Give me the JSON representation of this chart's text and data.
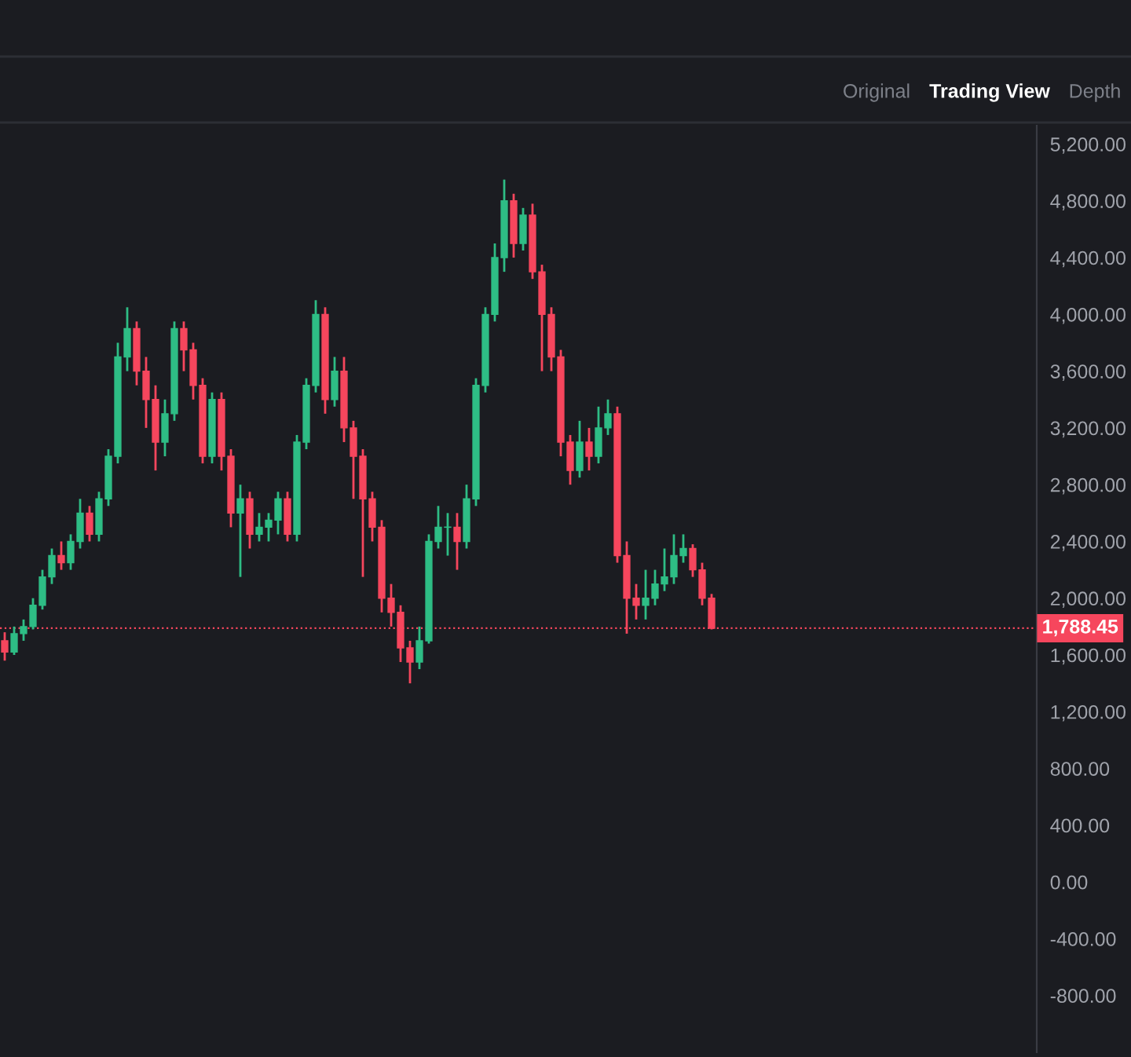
{
  "chart_data": {
    "type": "candlestick",
    "categories": [
      null,
      null,
      null,
      null,
      null,
      null,
      null,
      null,
      null,
      null,
      null,
      null,
      null,
      null,
      null,
      null,
      null,
      null,
      null,
      null,
      null,
      null,
      null,
      null,
      null,
      null,
      null,
      null,
      null,
      null,
      null,
      null,
      null,
      null,
      null,
      null,
      null,
      null,
      null,
      null,
      null,
      null,
      null,
      null,
      null,
      null,
      null,
      null,
      null,
      null,
      null,
      null,
      null,
      null,
      null,
      null,
      null,
      null,
      null,
      null,
      null,
      null,
      null,
      null,
      null,
      null,
      null,
      null,
      null,
      null,
      null,
      null,
      null,
      null,
      null,
      null,
      null,
      null,
      null,
      null,
      null,
      null,
      null,
      null,
      null,
      null,
      null,
      null,
      null,
      null,
      null,
      null,
      null,
      null,
      null,
      null,
      null,
      null,
      null,
      null,
      null,
      null,
      null,
      null,
      null,
      null,
      null,
      null,
      null,
      null
    ],
    "ohlc": [
      [
        1700,
        1760,
        1560,
        1620
      ],
      [
        1620,
        1800,
        1600,
        1750
      ],
      [
        1750,
        1850,
        1700,
        1800
      ],
      [
        1800,
        2000,
        1780,
        1950
      ],
      [
        1950,
        2200,
        1920,
        2150
      ],
      [
        2150,
        2350,
        2100,
        2300
      ],
      [
        2300,
        2400,
        2200,
        2250
      ],
      [
        2250,
        2450,
        2200,
        2400
      ],
      [
        2400,
        2700,
        2350,
        2600
      ],
      [
        2600,
        2650,
        2400,
        2450
      ],
      [
        2450,
        2750,
        2400,
        2700
      ],
      [
        2700,
        3050,
        2650,
        3000
      ],
      [
        3000,
        3800,
        2950,
        3700
      ],
      [
        3700,
        4050,
        3600,
        3900
      ],
      [
        3900,
        3950,
        3500,
        3600
      ],
      [
        3600,
        3700,
        3200,
        3400
      ],
      [
        3400,
        3500,
        2900,
        3100
      ],
      [
        3100,
        3400,
        3000,
        3300
      ],
      [
        3300,
        3950,
        3250,
        3900
      ],
      [
        3900,
        3950,
        3600,
        3750
      ],
      [
        3750,
        3800,
        3400,
        3500
      ],
      [
        3500,
        3550,
        2950,
        3000
      ],
      [
        3000,
        3450,
        2950,
        3400
      ],
      [
        3400,
        3450,
        2900,
        3000
      ],
      [
        3000,
        3050,
        2500,
        2600
      ],
      [
        2600,
        2800,
        2150,
        2700
      ],
      [
        2700,
        2750,
        2350,
        2450
      ],
      [
        2450,
        2600,
        2400,
        2500
      ],
      [
        2500,
        2600,
        2400,
        2550
      ],
      [
        2550,
        2750,
        2450,
        2700
      ],
      [
        2700,
        2750,
        2400,
        2450
      ],
      [
        2450,
        3150,
        2400,
        3100
      ],
      [
        3100,
        3550,
        3050,
        3500
      ],
      [
        3500,
        4100,
        3450,
        4000
      ],
      [
        4000,
        4050,
        3300,
        3400
      ],
      [
        3400,
        3700,
        3350,
        3600
      ],
      [
        3600,
        3700,
        3100,
        3200
      ],
      [
        3200,
        3250,
        2700,
        3000
      ],
      [
        3000,
        3050,
        2150,
        2700
      ],
      [
        2700,
        2750,
        2400,
        2500
      ],
      [
        2500,
        2550,
        1900,
        2000
      ],
      [
        2000,
        2100,
        1800,
        1900
      ],
      [
        1900,
        1950,
        1550,
        1650
      ],
      [
        1650,
        1700,
        1400,
        1550
      ],
      [
        1550,
        1800,
        1500,
        1700
      ],
      [
        1700,
        2450,
        1680,
        2400
      ],
      [
        2400,
        2650,
        2350,
        2500
      ],
      [
        2500,
        2600,
        2300,
        2500
      ],
      [
        2500,
        2600,
        2200,
        2400
      ],
      [
        2400,
        2800,
        2350,
        2700
      ],
      [
        2700,
        3550,
        2650,
        3500
      ],
      [
        3500,
        4050,
        3450,
        4000
      ],
      [
        4000,
        4500,
        3950,
        4400
      ],
      [
        4400,
        4950,
        4300,
        4800
      ],
      [
        4800,
        4850,
        4400,
        4500
      ],
      [
        4500,
        4750,
        4450,
        4700
      ],
      [
        4700,
        4780,
        4250,
        4300
      ],
      [
        4300,
        4350,
        3600,
        4000
      ],
      [
        4000,
        4050,
        3600,
        3700
      ],
      [
        3700,
        3750,
        3000,
        3100
      ],
      [
        3100,
        3150,
        2800,
        2900
      ],
      [
        2900,
        3250,
        2850,
        3100
      ],
      [
        3100,
        3200,
        2900,
        3000
      ],
      [
        3000,
        3350,
        2950,
        3200
      ],
      [
        3200,
        3400,
        3150,
        3300
      ],
      [
        3300,
        3350,
        2250,
        2300
      ],
      [
        2300,
        2400,
        1750,
        2000
      ],
      [
        2000,
        2100,
        1850,
        1950
      ],
      [
        1950,
        2200,
        1850,
        2000
      ],
      [
        2000,
        2200,
        1950,
        2100
      ],
      [
        2100,
        2350,
        2050,
        2150
      ],
      [
        2150,
        2450,
        2100,
        2300
      ],
      [
        2300,
        2450,
        2250,
        2350
      ],
      [
        2350,
        2380,
        2150,
        2200
      ],
      [
        2200,
        2250,
        1950,
        2000
      ],
      [
        2000,
        2030,
        1780,
        1788.45
      ],
      null,
      null,
      null,
      null,
      null,
      null,
      null,
      null,
      null,
      null,
      null,
      null,
      null,
      null,
      null,
      null,
      null,
      null,
      null,
      null,
      null,
      null,
      null,
      null,
      null,
      null,
      null,
      null,
      null,
      null,
      null,
      null,
      null,
      null
    ],
    "colors": [
      "#f6465d",
      "#2ebd85",
      "#2ebd85",
      "#2ebd85",
      "#2ebd85",
      "#2ebd85",
      "#f6465d",
      "#2ebd85",
      "#2ebd85",
      "#f6465d",
      "#2ebd85",
      "#2ebd85",
      "#2ebd85",
      "#2ebd85",
      "#f6465d",
      "#f6465d",
      "#f6465d",
      "#2ebd85",
      "#2ebd85",
      "#f6465d",
      "#f6465d",
      "#f6465d",
      "#2ebd85",
      "#f6465d",
      "#f6465d",
      "#2ebd85",
      "#f6465d",
      "#2ebd85",
      "#2ebd85",
      "#2ebd85",
      "#f6465d",
      "#2ebd85",
      "#2ebd85",
      "#2ebd85",
      "#f6465d",
      "#2ebd85",
      "#f6465d",
      "#f6465d",
      "#f6465d",
      "#f6465d",
      "#f6465d",
      "#f6465d",
      "#f6465d",
      "#f6465d",
      "#2ebd85",
      "#2ebd85",
      "#2ebd85",
      "#2ebd85",
      "#f6465d",
      "#2ebd85",
      "#2ebd85",
      "#2ebd85",
      "#2ebd85",
      "#2ebd85",
      "#f6465d",
      "#2ebd85",
      "#f6465d",
      "#f6465d",
      "#f6465d",
      "#f6465d",
      "#f6465d",
      "#2ebd85",
      "#f6465d",
      "#2ebd85",
      "#2ebd85",
      "#f6465d",
      "#f6465d",
      "#f6465d",
      "#2ebd85",
      "#2ebd85",
      "#2ebd85",
      "#2ebd85",
      "#2ebd85",
      "#f6465d",
      "#f6465d",
      "#f6465d",
      null,
      null,
      null,
      null,
      null,
      null,
      null,
      null,
      null,
      null,
      null,
      null,
      null,
      null,
      null,
      null,
      null,
      null,
      null,
      null,
      null,
      null,
      null,
      null,
      null,
      null,
      null,
      null,
      null,
      null,
      null,
      null,
      null,
      null
    ],
    "ylim": [
      -1200,
      5330
    ],
    "yticks": [
      {
        "value": -800,
        "label": "-800.00"
      },
      {
        "value": -400,
        "label": "-400.00"
      },
      {
        "value": 0,
        "label": "0.00"
      },
      {
        "value": 400,
        "label": "400.00"
      },
      {
        "value": 800,
        "label": "800.00"
      },
      {
        "value": 1200,
        "label": "1,200.00"
      },
      {
        "value": 1600,
        "label": "1,600.00"
      },
      {
        "value": 2000,
        "label": "2,000.00"
      },
      {
        "value": 2400,
        "label": "2,400.00"
      },
      {
        "value": 2800,
        "label": "2,800.00"
      },
      {
        "value": 3200,
        "label": "3,200.00"
      },
      {
        "value": 3600,
        "label": "3,600.00"
      },
      {
        "value": 4000,
        "label": "4,000.00"
      },
      {
        "value": 4400,
        "label": "4,400.00"
      },
      {
        "value": 4800,
        "label": "4,800.00"
      },
      {
        "value": 5200,
        "label": "5,200.00"
      }
    ],
    "ref_lines": [
      {
        "axis": "y",
        "value": 1788.45,
        "label": "1,788.45",
        "color": "#f6465d",
        "line_style": "dotted"
      }
    ],
    "annotations": [
      "Original",
      "Trading View",
      "Depth"
    ],
    "grid": false,
    "tick_labels": "y"
  }
}
